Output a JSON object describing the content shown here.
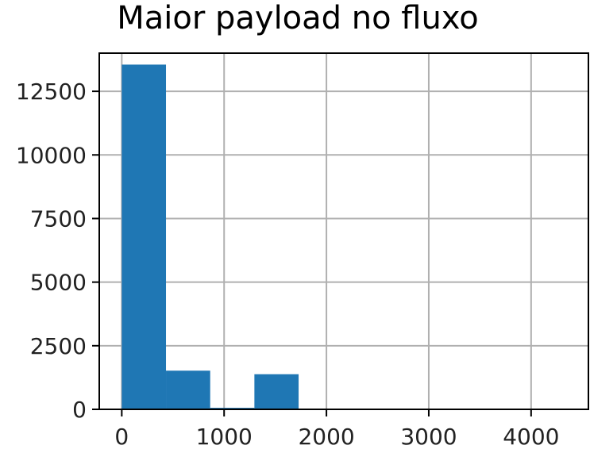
{
  "chart_data": {
    "type": "bar",
    "title": "Maior payload no fluxo",
    "xlabel": "",
    "ylabel": "",
    "xlim": [
      -220,
      4560
    ],
    "ylim": [
      0,
      14000
    ],
    "grid": true,
    "color": "#1f77b4",
    "bins": [
      {
        "x0": 0,
        "x1": 432,
        "count": 13550
      },
      {
        "x0": 432,
        "x1": 864,
        "count": 1520
      },
      {
        "x0": 864,
        "x1": 1296,
        "count": 60
      },
      {
        "x0": 1296,
        "x1": 1728,
        "count": 1380
      }
    ],
    "x_ticks": [
      0,
      1000,
      2000,
      3000,
      4000
    ],
    "x_tick_labels": [
      "0",
      "1000",
      "2000",
      "3000",
      "4000"
    ],
    "y_ticks": [
      0,
      2500,
      5000,
      7500,
      10000,
      12500
    ],
    "y_tick_labels": [
      "0",
      "2500",
      "5000",
      "7500",
      "10000",
      "12500"
    ]
  }
}
